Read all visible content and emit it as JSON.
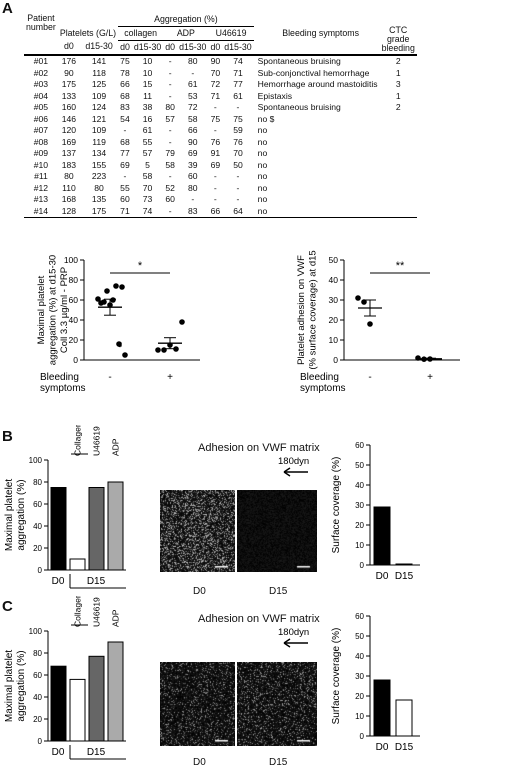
{
  "panels": {
    "A": "A",
    "B": "B",
    "C": "C"
  },
  "table": {
    "header": {
      "patient_number": [
        "Patient",
        "number"
      ],
      "platelets": "Platelets (G/L)",
      "aggregation": "Aggregation (%)",
      "collagen": "collagen",
      "adp": "ADP",
      "u46619": "U46619",
      "bleeding": "Bleeding symptoms",
      "ctc": [
        "CTC",
        "grade",
        "bleeding"
      ],
      "d0": "d0",
      "d1530": "d15-30"
    },
    "rows": [
      {
        "id": "#01",
        "p0": "176",
        "p15": "141",
        "c0": "75",
        "c15": "10",
        "a0": "-",
        "a15": "80",
        "u0": "90",
        "u15": "74",
        "sym": "Spontaneous bruising",
        "ctc": "2"
      },
      {
        "id": "#02",
        "p0": "90",
        "p15": "118",
        "c0": "78",
        "c15": "10",
        "a0": "-",
        "a15": "-",
        "u0": "70",
        "u15": "71",
        "sym": "Sub-conjonctival hemorrhage",
        "ctc": "1"
      },
      {
        "id": "#03",
        "p0": "175",
        "p15": "125",
        "c0": "66",
        "c15": "15",
        "a0": "-",
        "a15": "61",
        "u0": "72",
        "u15": "77",
        "sym": "Hemorrhage around mastoiditis",
        "ctc": "3"
      },
      {
        "id": "#04",
        "p0": "133",
        "p15": "109",
        "c0": "68",
        "c15": "11",
        "a0": "-",
        "a15": "53",
        "u0": "71",
        "u15": "61",
        "sym": "Epistaxis",
        "ctc": "1"
      },
      {
        "id": "#05",
        "p0": "160",
        "p15": "124",
        "c0": "83",
        "c15": "38",
        "a0": "80",
        "a15": "72",
        "u0": "-",
        "u15": "-",
        "sym": "Spontaneous bruising",
        "ctc": "2"
      },
      {
        "id": "#06",
        "p0": "146",
        "p15": "121",
        "c0": "54",
        "c15": "16",
        "a0": "57",
        "a15": "58",
        "u0": "75",
        "u15": "75",
        "sym": "no $",
        "ctc": ""
      },
      {
        "id": "#07",
        "p0": "120",
        "p15": "109",
        "c0": "-",
        "c15": "61",
        "a0": "-",
        "a15": "66",
        "u0": "-",
        "u15": "59",
        "sym": "no",
        "ctc": ""
      },
      {
        "id": "#08",
        "p0": "169",
        "p15": "119",
        "c0": "68",
        "c15": "55",
        "a0": "-",
        "a15": "90",
        "u0": "76",
        "u15": "76",
        "sym": "no",
        "ctc": ""
      },
      {
        "id": "#09",
        "p0": "137",
        "p15": "134",
        "c0": "77",
        "c15": "57",
        "a0": "79",
        "a15": "69",
        "u0": "91",
        "u15": "70",
        "sym": "no",
        "ctc": ""
      },
      {
        "id": "#10",
        "p0": "183",
        "p15": "155",
        "c0": "69",
        "c15": "5",
        "a0": "58",
        "a15": "39",
        "u0": "69",
        "u15": "50",
        "sym": "no",
        "ctc": ""
      },
      {
        "id": "#11",
        "p0": "80",
        "p15": "223",
        "c0": "-",
        "c15": "58",
        "a0": "-",
        "a15": "60",
        "u0": "-",
        "u15": "-",
        "sym": "no",
        "ctc": ""
      },
      {
        "id": "#12",
        "p0": "110",
        "p15": "80",
        "c0": "55",
        "c15": "70",
        "a0": "52",
        "a15": "80",
        "u0": "-",
        "u15": "-",
        "sym": "no",
        "ctc": ""
      },
      {
        "id": "#13",
        "p0": "168",
        "p15": "135",
        "c0": "60",
        "c15": "73",
        "a0": "60",
        "a15": "-",
        "u0": "-",
        "u15": "-",
        "sym": "no",
        "ctc": ""
      },
      {
        "id": "#14",
        "p0": "128",
        "p15": "175",
        "c0": "71",
        "c15": "74",
        "a0": "-",
        "a15": "83",
        "u0": "66",
        "u15": "64",
        "sym": "no",
        "ctc": ""
      }
    ]
  },
  "chart_data": [
    {
      "type": "scatter",
      "ylabel": "Maximal platelet aggregation (%) at d15-30 Coll 3.3 µg/ml - PRP",
      "xlabel": "Bleeding symptoms",
      "categories": [
        "-",
        "+"
      ],
      "ylim": [
        0,
        100
      ],
      "yticks": [
        0,
        20,
        40,
        60,
        80,
        100
      ],
      "significance": "*",
      "annotation": "$",
      "series": [
        {
          "values": [
            [
              0,
              61
            ],
            [
              0,
              58
            ],
            [
              0,
              55
            ],
            [
              0,
              74
            ],
            [
              0,
              73
            ],
            [
              0,
              57
            ],
            [
              0,
              69
            ],
            [
              0,
              60
            ],
            [
              0,
              16
            ],
            [
              0,
              5
            ]
          ]
        },
        {
          "values": [
            [
              1,
              10
            ],
            [
              1,
              10
            ],
            [
              1,
              15
            ],
            [
              1,
              11
            ],
            [
              1,
              38
            ]
          ]
        }
      ],
      "mean_sem": [
        {
          "mean": 52.8,
          "sem": 8.0
        },
        {
          "mean": 16.8,
          "sem": 5.5
        }
      ]
    },
    {
      "type": "scatter",
      "ylabel": "Platelet adhesion on VWF (% surface coverage) at d15",
      "xlabel": "Bleeding symptoms",
      "categories": [
        "-",
        "+"
      ],
      "ylim": [
        0,
        50
      ],
      "yticks": [
        0,
        10,
        20,
        30,
        40,
        50
      ],
      "significance": "**",
      "series": [
        {
          "values": [
            [
              0,
              31
            ],
            [
              0,
              29
            ],
            [
              0,
              18
            ]
          ]
        },
        {
          "values": [
            [
              1,
              1.0
            ],
            [
              1,
              0.4
            ],
            [
              1,
              0.5
            ]
          ]
        }
      ],
      "mean_sem": [
        {
          "mean": 26.0,
          "sem": 4.0
        },
        {
          "mean": 0.6,
          "sem": 0.3
        }
      ]
    },
    {
      "type": "bar",
      "ylabel": "Maximal platelet aggregation (%)",
      "categories": [
        "D0",
        "Collagen",
        "U46619",
        "ADP"
      ],
      "values": [
        75,
        10,
        75,
        80
      ],
      "group_label": "D15",
      "ylim": [
        0,
        100
      ],
      "yticks": [
        0,
        20,
        40,
        60,
        80,
        100
      ]
    },
    {
      "type": "bar",
      "ylabel": "Surface coverage (%)",
      "categories": [
        "D0",
        "D15"
      ],
      "values": [
        29,
        0.5
      ],
      "ylim": [
        0,
        60
      ],
      "yticks": [
        0,
        10,
        20,
        30,
        40,
        50,
        60
      ]
    },
    {
      "type": "bar",
      "ylabel": "Maximal platelet aggregation (%)",
      "categories": [
        "D0",
        "Collagen",
        "U46619",
        "ADP"
      ],
      "values": [
        68,
        56,
        77,
        90
      ],
      "group_label": "D15",
      "ylim": [
        0,
        100
      ],
      "yticks": [
        0,
        20,
        40,
        60,
        80,
        100
      ]
    },
    {
      "type": "bar",
      "ylabel": "Surface coverage (%)",
      "categories": [
        "D0",
        "D15"
      ],
      "values": [
        28,
        18
      ],
      "ylim": [
        0,
        60
      ],
      "yticks": [
        0,
        10,
        20,
        30,
        40,
        50,
        60
      ]
    }
  ],
  "micro": {
    "title": "Adhesion on VWF matrix",
    "flow": "180dyn",
    "d0": "D0",
    "d15": "D15"
  },
  "colors": {
    "black": "#000000",
    "dark_gray": "#666666",
    "light_gray": "#aaaaaa",
    "white": "#ffffff"
  }
}
